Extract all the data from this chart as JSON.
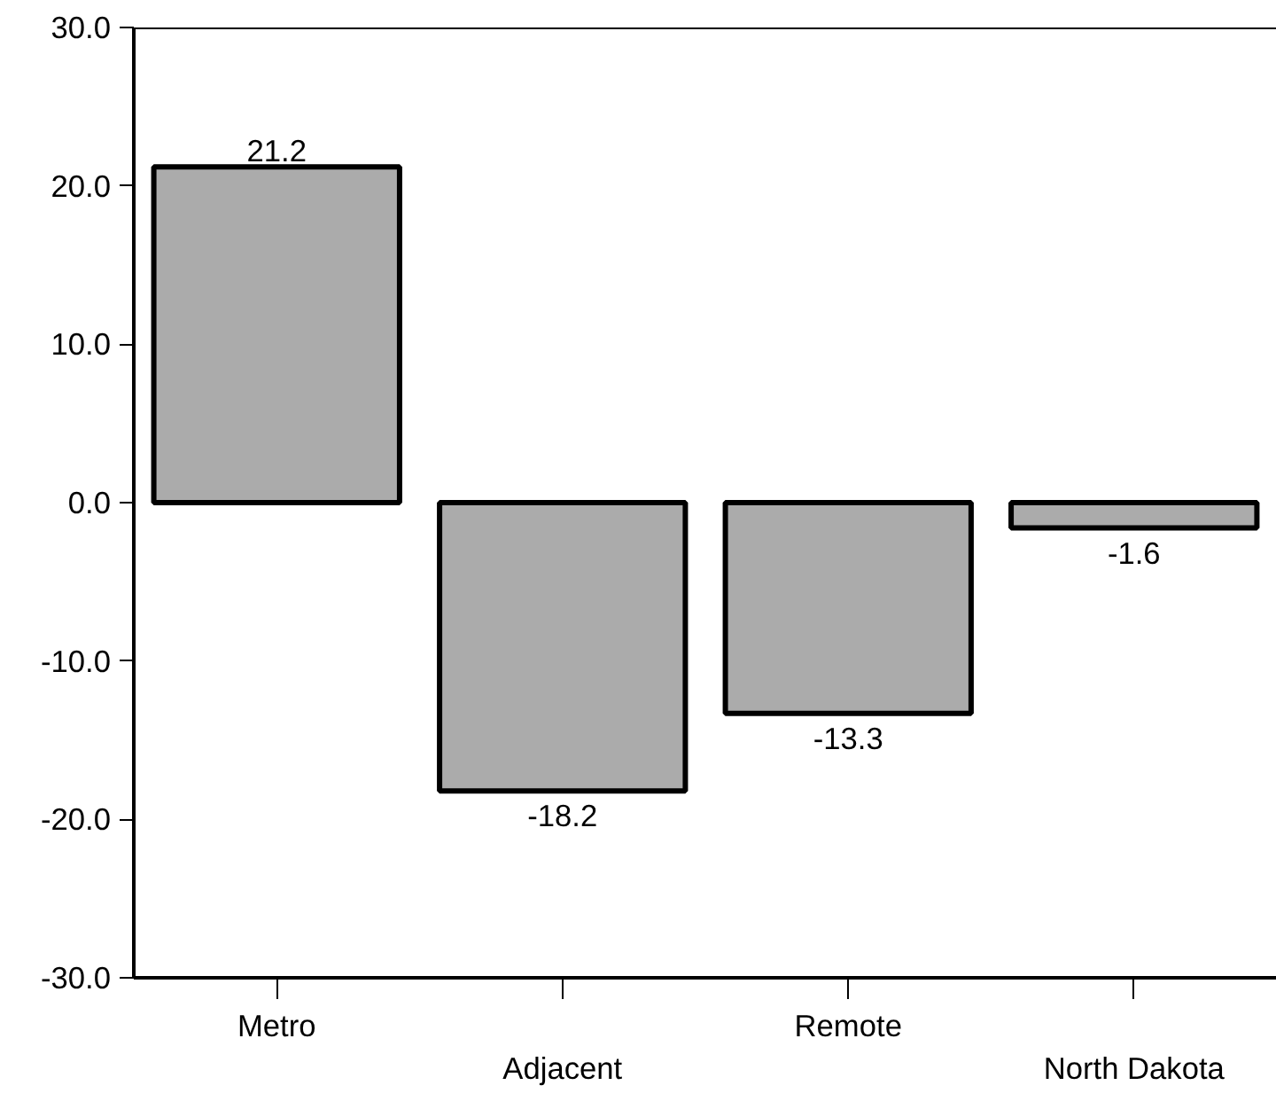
{
  "chart_data": {
    "type": "bar",
    "categories": [
      "Metro",
      "Adjacent",
      "Remote",
      "North Dakota"
    ],
    "values": [
      21.2,
      -18.2,
      -13.3,
      -1.6
    ],
    "color": "#ababab",
    "ylim": [
      -30,
      30
    ],
    "yticks": [
      {
        "value": -30,
        "label": "-30.0"
      },
      {
        "value": -20,
        "label": "-20.0"
      },
      {
        "value": -10,
        "label": "-10.0"
      },
      {
        "value": 0,
        "label": "0.0"
      },
      {
        "value": 10,
        "label": "10.0"
      },
      {
        "value": 20,
        "label": "20.0"
      },
      {
        "value": 30,
        "label": "30.0"
      }
    ],
    "data_labels": true,
    "grid": false
  }
}
